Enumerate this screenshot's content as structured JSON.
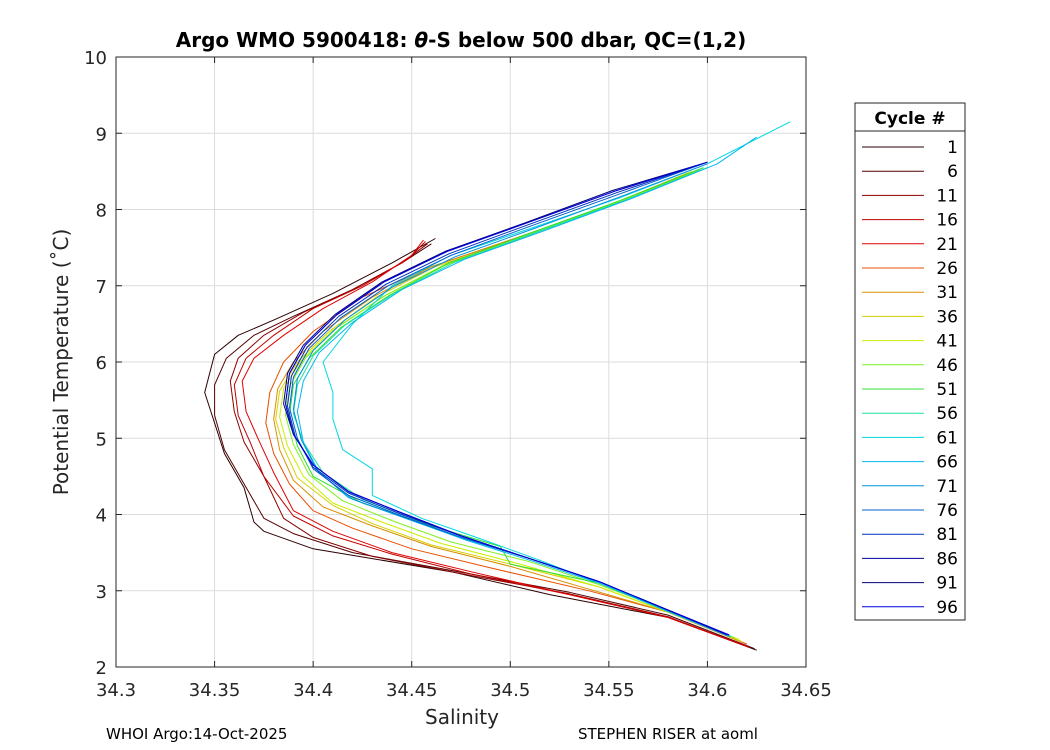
{
  "chart_data": {
    "type": "line",
    "title_prefix": "Argo WMO 5900418: ",
    "title_theta": "θ",
    "title_suffix": "-S below 500 dbar,  QC=(1,2)",
    "xlabel": "Salinity",
    "ylabel": "Potential Temperature (˚C)",
    "xlim": [
      34.3,
      34.65
    ],
    "ylim": [
      2,
      10
    ],
    "xticks": [
      34.3,
      34.35,
      34.4,
      34.45,
      34.5,
      34.55,
      34.6,
      34.65
    ],
    "xtick_labels": [
      "34.3",
      "34.35",
      "34.4",
      "34.45",
      "34.5",
      "34.55",
      "34.6",
      "34.65"
    ],
    "yticks": [
      2,
      3,
      4,
      5,
      6,
      7,
      8,
      9,
      10
    ],
    "ytick_labels": [
      "2",
      "3",
      "4",
      "5",
      "6",
      "7",
      "8",
      "9",
      "10"
    ],
    "grid": true,
    "legend_title": "Cycle #",
    "legend_position": "right",
    "series": [
      {
        "name": "1",
        "color": "#2a0000",
        "x": [
          34.625,
          34.58,
          34.52,
          34.47,
          34.4,
          34.375,
          34.37,
          34.365,
          34.355,
          34.35,
          34.345,
          34.348,
          34.35,
          34.362,
          34.38,
          34.41,
          34.44,
          34.462
        ],
        "y": [
          2.22,
          2.65,
          2.95,
          3.25,
          3.55,
          3.78,
          3.9,
          4.35,
          4.8,
          5.2,
          5.6,
          5.9,
          6.1,
          6.35,
          6.55,
          6.9,
          7.3,
          7.62
        ]
      },
      {
        "name": "6",
        "color": "#550000",
        "x": [
          34.624,
          34.58,
          34.53,
          34.48,
          34.42,
          34.39,
          34.375,
          34.365,
          34.355,
          34.35,
          34.35,
          34.356,
          34.37,
          34.39,
          34.42,
          34.445,
          34.46
        ],
        "y": [
          2.24,
          2.68,
          2.98,
          3.22,
          3.5,
          3.75,
          3.95,
          4.4,
          4.85,
          5.3,
          5.7,
          6.05,
          6.35,
          6.6,
          6.95,
          7.3,
          7.55
        ]
      },
      {
        "name": "11",
        "color": "#8b0000",
        "x": [
          34.622,
          34.58,
          34.53,
          34.48,
          34.43,
          34.4,
          34.385,
          34.375,
          34.365,
          34.36,
          34.358,
          34.362,
          34.375,
          34.395,
          34.42,
          34.445,
          34.458
        ],
        "y": [
          2.25,
          2.66,
          2.96,
          3.2,
          3.45,
          3.7,
          3.95,
          4.5,
          4.95,
          5.35,
          5.75,
          6.05,
          6.35,
          6.65,
          6.95,
          7.3,
          7.55
        ]
      },
      {
        "name": "16",
        "color": "#c00000",
        "x": [
          34.621,
          34.58,
          34.53,
          34.48,
          34.44,
          34.41,
          34.39,
          34.375,
          34.368,
          34.362,
          34.36,
          34.366,
          34.38,
          34.4,
          34.425,
          34.448,
          34.457
        ],
        "y": [
          2.26,
          2.65,
          2.95,
          3.22,
          3.48,
          3.72,
          3.98,
          4.5,
          4.95,
          5.3,
          5.7,
          6.05,
          6.35,
          6.7,
          7.0,
          7.35,
          7.58
        ]
      },
      {
        "name": "21",
        "color": "#e00000",
        "x": [
          34.62,
          34.58,
          34.53,
          34.48,
          34.44,
          34.41,
          34.39,
          34.38,
          34.372,
          34.366,
          34.364,
          34.37,
          34.385,
          34.405,
          34.43,
          34.45,
          34.456
        ],
        "y": [
          2.27,
          2.65,
          2.95,
          3.25,
          3.5,
          3.78,
          4.05,
          4.55,
          5.0,
          5.35,
          5.75,
          6.05,
          6.35,
          6.7,
          7.05,
          7.4,
          7.6
        ]
      },
      {
        "name": "26",
        "color": "#e85000",
        "x": [
          34.62,
          34.58,
          34.54,
          34.49,
          34.45,
          34.42,
          34.4,
          34.388,
          34.38,
          34.376,
          34.378,
          34.385,
          34.4,
          34.425,
          34.46,
          34.5,
          34.545,
          34.59
        ],
        "y": [
          2.3,
          2.72,
          3.0,
          3.3,
          3.55,
          3.82,
          4.05,
          4.4,
          4.8,
          5.2,
          5.6,
          6.0,
          6.4,
          6.85,
          7.25,
          7.6,
          8.0,
          8.45
        ]
      },
      {
        "name": "31",
        "color": "#d89000",
        "x": [
          34.618,
          34.58,
          34.54,
          34.5,
          34.46,
          34.43,
          34.405,
          34.39,
          34.383,
          34.38,
          34.382,
          34.39,
          34.405,
          34.43,
          34.46,
          34.5,
          34.545,
          34.59
        ],
        "y": [
          2.32,
          2.72,
          3.02,
          3.32,
          3.58,
          3.85,
          4.1,
          4.45,
          4.85,
          5.25,
          5.65,
          6.0,
          6.4,
          6.85,
          7.25,
          7.6,
          8.0,
          8.48
        ]
      },
      {
        "name": "36",
        "color": "#d8d000",
        "x": [
          34.617,
          34.58,
          34.545,
          34.5,
          34.46,
          34.43,
          34.41,
          34.392,
          34.385,
          34.381,
          34.383,
          34.392,
          34.408,
          34.432,
          34.462,
          34.502,
          34.548,
          34.592
        ],
        "y": [
          2.34,
          2.72,
          3.05,
          3.35,
          3.6,
          3.88,
          4.12,
          4.48,
          4.88,
          5.25,
          5.62,
          6.0,
          6.4,
          6.85,
          7.25,
          7.6,
          8.02,
          8.5
        ]
      },
      {
        "name": "41",
        "color": "#c8f000",
        "x": [
          34.616,
          34.58,
          34.545,
          34.505,
          34.465,
          34.435,
          34.41,
          34.395,
          34.387,
          34.383,
          34.385,
          34.394,
          34.41,
          34.435,
          34.465,
          34.505,
          34.55,
          34.594
        ],
        "y": [
          2.36,
          2.72,
          3.05,
          3.35,
          3.62,
          3.9,
          4.15,
          4.5,
          4.9,
          5.28,
          5.65,
          6.02,
          6.42,
          6.85,
          7.25,
          7.62,
          8.05,
          8.5
        ]
      },
      {
        "name": "46",
        "color": "#80f020",
        "x": [
          34.614,
          34.58,
          34.545,
          34.51,
          34.47,
          34.44,
          34.415,
          34.398,
          34.39,
          34.386,
          34.388,
          34.396,
          34.412,
          34.437,
          34.467,
          34.507,
          34.552,
          34.596
        ],
        "y": [
          2.38,
          2.74,
          3.08,
          3.38,
          3.64,
          3.92,
          4.18,
          4.52,
          4.92,
          5.3,
          5.68,
          6.05,
          6.45,
          6.88,
          7.28,
          7.65,
          8.08,
          8.52
        ]
      },
      {
        "name": "51",
        "color": "#30e030",
        "x": [
          34.612,
          34.575,
          34.545,
          34.5,
          34.495,
          34.46,
          34.425,
          34.4,
          34.392,
          34.388,
          34.39,
          34.398,
          34.414,
          34.439,
          34.469,
          34.509,
          34.554,
          34.598
        ],
        "y": [
          2.4,
          2.78,
          3.1,
          3.35,
          3.58,
          3.85,
          4.15,
          4.5,
          4.9,
          5.3,
          5.7,
          6.05,
          6.45,
          6.88,
          7.3,
          7.68,
          8.1,
          8.55
        ]
      },
      {
        "name": "56",
        "color": "#20e0a0",
        "x": [
          34.61,
          34.575,
          34.545,
          34.51,
          34.48,
          34.45,
          34.425,
          34.405,
          34.395,
          34.39,
          34.392,
          34.4,
          34.416,
          34.441,
          34.471,
          34.511,
          34.556,
          34.6
        ],
        "y": [
          2.42,
          2.8,
          3.12,
          3.42,
          3.68,
          3.95,
          4.2,
          4.55,
          4.95,
          5.32,
          5.7,
          6.08,
          6.48,
          6.9,
          7.3,
          7.68,
          8.1,
          8.55
        ]
      },
      {
        "name": "61",
        "color": "#00d8e0",
        "x": [
          34.612,
          34.575,
          34.545,
          34.515,
          34.485,
          34.455,
          34.43,
          34.43,
          34.415,
          34.41,
          34.41,
          34.405,
          34.42,
          34.44,
          34.47,
          34.51,
          34.555,
          34.6,
          34.642
        ],
        "y": [
          2.4,
          2.8,
          3.1,
          3.4,
          3.68,
          3.95,
          4.25,
          4.6,
          4.85,
          5.25,
          5.6,
          6.0,
          6.5,
          7.0,
          7.4,
          7.75,
          8.15,
          8.6,
          9.15
        ]
      },
      {
        "name": "66",
        "color": "#00b8f0",
        "x": [
          34.611,
          34.575,
          34.545,
          34.51,
          34.478,
          34.448,
          34.42,
          34.403,
          34.395,
          34.392,
          34.395,
          34.403,
          34.42,
          34.445,
          34.477,
          34.517,
          34.562,
          34.605,
          34.625
        ],
        "y": [
          2.4,
          2.78,
          3.1,
          3.4,
          3.66,
          3.94,
          4.2,
          4.55,
          4.95,
          5.35,
          5.75,
          6.12,
          6.52,
          6.95,
          7.35,
          7.72,
          8.15,
          8.6,
          8.95
        ]
      },
      {
        "name": "71",
        "color": "#0090e0",
        "x": [
          34.61,
          34.575,
          34.545,
          34.51,
          34.475,
          34.445,
          34.418,
          34.402,
          34.394,
          34.39,
          34.392,
          34.4,
          34.416,
          34.44,
          34.472,
          34.512,
          34.557,
          34.6
        ],
        "y": [
          2.42,
          2.8,
          3.12,
          3.42,
          3.7,
          3.97,
          4.22,
          4.58,
          4.98,
          5.38,
          5.78,
          6.15,
          6.55,
          6.98,
          7.38,
          7.75,
          8.18,
          8.6
        ]
      },
      {
        "name": "76",
        "color": "#0060d0",
        "x": [
          34.61,
          34.575,
          34.545,
          34.51,
          34.475,
          34.445,
          34.418,
          34.4,
          34.392,
          34.388,
          34.39,
          34.398,
          34.414,
          34.438,
          34.47,
          34.51,
          34.555,
          34.6
        ],
        "y": [
          2.42,
          2.8,
          3.12,
          3.42,
          3.7,
          3.98,
          4.25,
          4.6,
          5.0,
          5.4,
          5.8,
          6.18,
          6.58,
          7.0,
          7.4,
          7.78,
          8.2,
          8.62
        ]
      },
      {
        "name": "81",
        "color": "#0030c0",
        "x": [
          34.61,
          34.575,
          34.545,
          34.51,
          34.475,
          34.445,
          34.418,
          34.4,
          34.391,
          34.387,
          34.389,
          34.397,
          34.413,
          34.437,
          34.469,
          34.509,
          34.554,
          34.6
        ],
        "y": [
          2.42,
          2.8,
          3.12,
          3.42,
          3.72,
          4.0,
          4.28,
          4.62,
          5.02,
          5.42,
          5.82,
          6.2,
          6.6,
          7.02,
          7.42,
          7.8,
          8.22,
          8.62
        ]
      },
      {
        "name": "86",
        "color": "#000099",
        "x": [
          34.611,
          34.575,
          34.545,
          34.51,
          34.475,
          34.445,
          34.418,
          34.4,
          34.39,
          34.386,
          34.388,
          34.396,
          34.412,
          34.436,
          34.468,
          34.508,
          34.553,
          34.6
        ],
        "y": [
          2.42,
          2.8,
          3.12,
          3.42,
          3.72,
          4.02,
          4.3,
          4.65,
          5.05,
          5.45,
          5.85,
          6.22,
          6.62,
          7.05,
          7.45,
          7.82,
          8.24,
          8.62
        ]
      },
      {
        "name": "91",
        "color": "#00007a",
        "x": [
          34.611,
          34.575,
          34.545,
          34.51,
          34.475,
          34.445,
          34.418,
          34.4,
          34.39,
          34.385,
          34.387,
          34.395,
          34.411,
          34.435,
          34.467,
          34.507,
          34.552,
          34.6
        ],
        "y": [
          2.42,
          2.8,
          3.12,
          3.42,
          3.72,
          4.02,
          4.3,
          4.65,
          5.05,
          5.45,
          5.85,
          6.22,
          6.62,
          7.05,
          7.45,
          7.82,
          8.25,
          8.62
        ]
      },
      {
        "name": "96",
        "color": "#0000e0",
        "x": [
          34.611,
          34.575,
          34.545,
          34.51,
          34.475,
          34.445,
          34.418,
          34.4,
          34.39,
          34.386,
          34.388,
          34.396,
          34.412,
          34.436,
          34.468,
          34.508,
          34.553,
          34.6
        ],
        "y": [
          2.42,
          2.8,
          3.12,
          3.42,
          3.72,
          4.02,
          4.3,
          4.65,
          5.05,
          5.45,
          5.85,
          6.22,
          6.62,
          7.05,
          7.45,
          7.82,
          8.24,
          8.62
        ]
      }
    ]
  },
  "footer": {
    "left": "WHOI Argo:14-Oct-2025",
    "right": "STEPHEN RISER at aoml"
  }
}
